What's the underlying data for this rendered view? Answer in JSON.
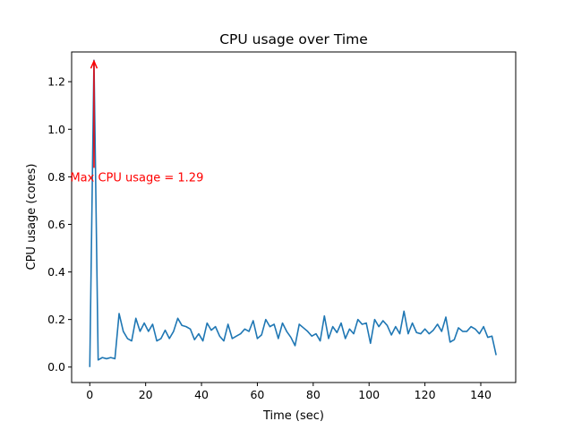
{
  "chart_data": {
    "type": "line",
    "title": "CPU usage over Time",
    "xlabel": "Time (sec)",
    "ylabel": "CPU usage (cores)",
    "xlim": [
      -6.5,
      152.5
    ],
    "ylim": [
      -0.065,
      1.325
    ],
    "x_ticks": [
      0,
      20,
      40,
      60,
      80,
      100,
      120,
      140
    ],
    "y_ticks": [
      0.0,
      0.2,
      0.4,
      0.6,
      0.8,
      1.0,
      1.2
    ],
    "y_tick_labels": [
      "0.0",
      "0.2",
      "0.4",
      "0.6",
      "0.8",
      "1.0",
      "1.2"
    ],
    "grid": false,
    "legend": "none",
    "series": [
      {
        "color": "#1f77b4",
        "x": [
          0,
          1.5,
          3,
          4.5,
          6,
          7.5,
          9,
          10.5,
          12,
          13.5,
          15,
          16.5,
          18,
          19.5,
          21,
          22.5,
          24,
          25.5,
          27,
          28.5,
          30,
          31.5,
          33,
          34.5,
          36,
          37.5,
          39,
          40.5,
          42,
          43.5,
          45,
          46.5,
          48,
          49.5,
          51,
          52.5,
          54,
          55.5,
          57,
          58.5,
          60,
          61.5,
          63,
          64.5,
          66,
          67.5,
          69,
          70.5,
          72,
          73.5,
          75,
          76.5,
          78,
          79.5,
          81,
          82.5,
          84,
          85.5,
          87,
          88.5,
          90,
          91.5,
          93,
          94.5,
          96,
          97.5,
          99,
          100.5,
          102,
          103.5,
          105,
          106.5,
          108,
          109.5,
          111,
          112.5,
          114,
          115.5,
          117,
          118.5,
          120,
          121.5,
          123,
          124.5,
          126,
          127.5,
          129,
          130.5,
          132,
          133.5,
          135,
          136.5,
          138,
          139.5,
          141,
          142.5,
          144,
          145.5
        ],
        "y": [
          0.0,
          1.29,
          0.03,
          0.04,
          0.035,
          0.04,
          0.035,
          0.225,
          0.15,
          0.12,
          0.11,
          0.205,
          0.15,
          0.185,
          0.15,
          0.18,
          0.11,
          0.12,
          0.155,
          0.12,
          0.15,
          0.205,
          0.175,
          0.17,
          0.16,
          0.115,
          0.14,
          0.11,
          0.185,
          0.155,
          0.17,
          0.13,
          0.11,
          0.18,
          0.12,
          0.13,
          0.14,
          0.16,
          0.15,
          0.195,
          0.12,
          0.135,
          0.2,
          0.17,
          0.18,
          0.12,
          0.185,
          0.15,
          0.125,
          0.09,
          0.18,
          0.165,
          0.15,
          0.13,
          0.14,
          0.11,
          0.215,
          0.12,
          0.17,
          0.145,
          0.185,
          0.12,
          0.16,
          0.14,
          0.2,
          0.18,
          0.185,
          0.1,
          0.2,
          0.17,
          0.195,
          0.175,
          0.135,
          0.17,
          0.14,
          0.235,
          0.14,
          0.185,
          0.145,
          0.14,
          0.16,
          0.14,
          0.155,
          0.18,
          0.15,
          0.21,
          0.105,
          0.115,
          0.165,
          0.15,
          0.15,
          0.17,
          0.16,
          0.14,
          0.17,
          0.125,
          0.13,
          0.05
        ]
      }
    ],
    "annotations": [
      {
        "text": "Max CPU usage = 1.29",
        "color": "#ff0000",
        "xy": [
          1.5,
          1.29
        ],
        "xytext": [
          -7,
          0.8
        ]
      }
    ]
  }
}
